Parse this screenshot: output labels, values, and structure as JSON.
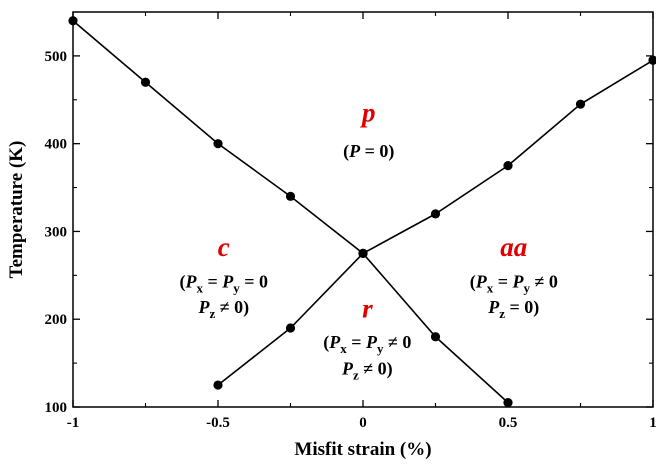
{
  "chart_data": {
    "type": "line",
    "xlabel": "Misfit strain (%)",
    "ylabel": "Temperature (K)",
    "xlim": [
      -1,
      1
    ],
    "ylim": [
      100,
      550
    ],
    "x_ticks": [
      "-1",
      "-0.5",
      "0",
      "0.5",
      "1"
    ],
    "y_ticks": [
      "100",
      "200",
      "300",
      "400",
      "500"
    ],
    "grid": false,
    "series": [
      {
        "x": [
          -1,
          -0.75,
          -0.5,
          -0.25,
          0,
          0.25,
          0.5
        ],
        "y": [
          540,
          470,
          400,
          340,
          275,
          180,
          105
        ]
      },
      {
        "x": [
          -0.5,
          -0.25,
          0,
          0.25,
          0.5,
          0.75,
          1
        ],
        "y": [
          125,
          190,
          275,
          320,
          375,
          445,
          495
        ]
      }
    ],
    "line_color": "#000000",
    "marker": "filled-circle",
    "phase_label_color": "#e00000",
    "phases": [
      {
        "name": "p",
        "lines": [
          [
            "(",
            "P",
            " = 0)"
          ]
        ]
      },
      {
        "name": "c",
        "lines": [
          [
            "(",
            "P",
            "x",
            " = ",
            "P",
            "y",
            " = 0"
          ],
          [
            "P",
            "z",
            " ≠ 0)"
          ]
        ]
      },
      {
        "name": "r",
        "lines": [
          [
            "(",
            "P",
            "x",
            " = ",
            "P",
            "y",
            " ≠ 0"
          ],
          [
            "P",
            "z",
            " ≠ 0)"
          ]
        ]
      },
      {
        "name": "aa",
        "lines": [
          [
            "(",
            "P",
            "x",
            " = ",
            "P",
            "y",
            " ≠ 0"
          ],
          [
            "P",
            "z",
            " = 0)"
          ]
        ]
      }
    ]
  }
}
